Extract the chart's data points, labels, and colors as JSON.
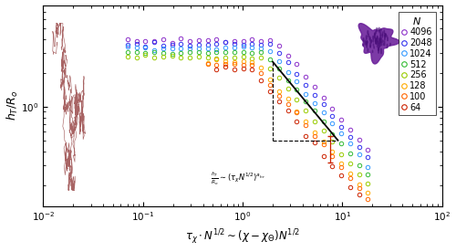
{
  "xlabel": "$\\tau_{\\chi} \\cdot N^{1/2} \\sim (\\chi - \\chi_{\\Theta})N^{1/2}$",
  "ylabel": "$h_T / R_o$",
  "xlim": [
    0.01,
    100
  ],
  "ylim": [
    0.13,
    8
  ],
  "N_values": [
    4096,
    2048,
    1024,
    512,
    256,
    128,
    100,
    64
  ],
  "colors": {
    "4096": "#8B2FC9",
    "2048": "#3333EE",
    "1024": "#3399FF",
    "512": "#33BB33",
    "256": "#99CC00",
    "128": "#FFAA00",
    "100": "#FF6600",
    "64": "#CC2200"
  },
  "annotation_formula": "$\\frac{h_T}{R_o} \\sim (\\tau_{\\chi} N^{1/2})^{a_{hr}}$",
  "background_color": "#ffffff",
  "walk_color": "#8B3030",
  "tri_x1": 2.0,
  "tri_x2": 9.0,
  "tri_y_top": 2.5,
  "tri_y_bot": 0.5,
  "errorbar_x": 7.5,
  "errorbar_y": 0.42,
  "errorbar_yerr": 0.1
}
